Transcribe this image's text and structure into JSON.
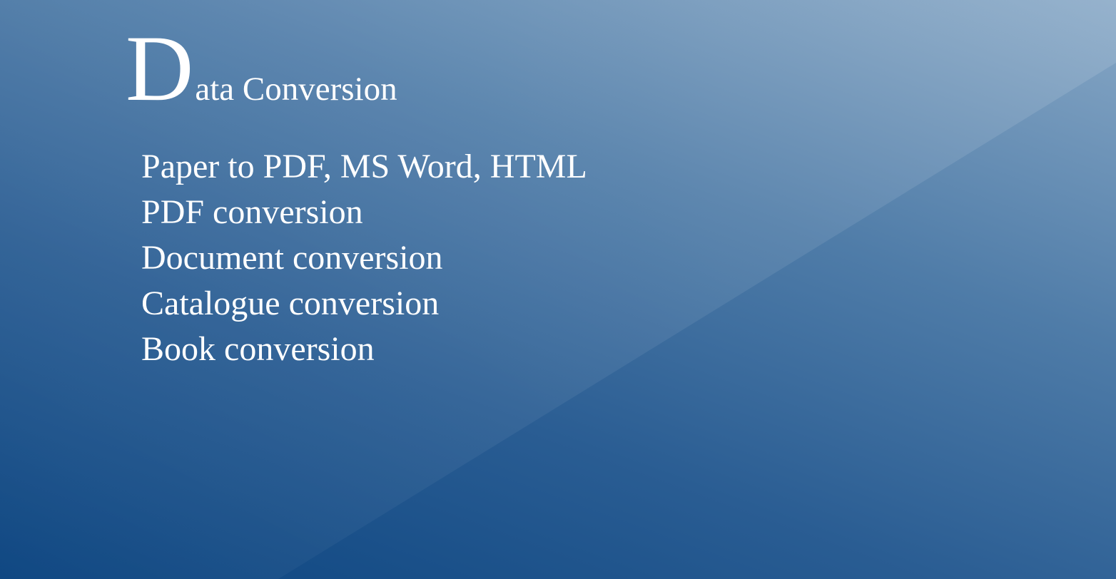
{
  "slide": {
    "title_initial": "D",
    "title_rest": "ata Conversion",
    "items": [
      "Paper to PDF, MS Word, HTML",
      "PDF conversion",
      "Document conversion",
      "Catalogue conversion",
      "Book conversion"
    ]
  },
  "colors": {
    "background_dark": "#0b4480",
    "background_light": "#88a8c6",
    "text": "#ffffff"
  }
}
